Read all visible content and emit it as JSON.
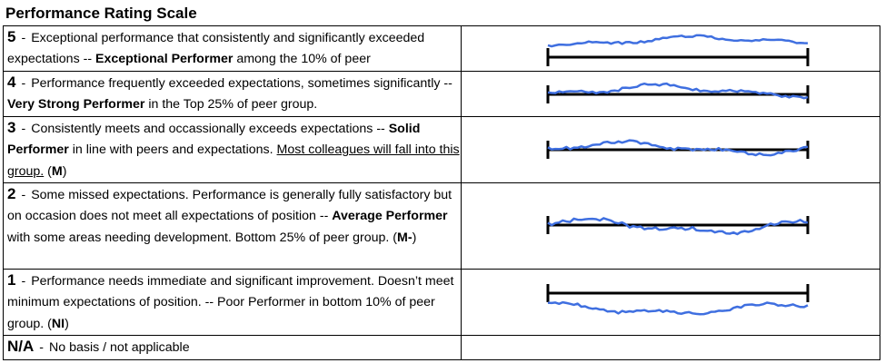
{
  "title": "Performance Rating Scale",
  "rows": [
    {
      "rating": "5",
      "dash": "-",
      "text1": "Exceptional performance that consistently and significantly exceeded expectations -- ",
      "bold1": "Exceptional Performer",
      "text2": " among the 10% of peer",
      "curve": "above",
      "line_color": "#000000",
      "curve_color": "#3f6fe0"
    },
    {
      "rating": "4",
      "dash": "-",
      "text1": "Performance frequently exceeded expectations, sometimes significantly -- ",
      "bold1": "Very Strong Performer",
      "text2": " in the Top 25% of peer group.",
      "curve": "slightly-above",
      "line_color": "#000000",
      "curve_color": "#3f6fe0"
    },
    {
      "rating": "3",
      "dash": "-",
      "text1": "Consistently meets and occassionally exceeds expectations -- ",
      "bold1": "Solid Performer",
      "text2": " in line with peers and expectations.  ",
      "underlined": "Most colleagues will fall into this group.",
      "text3": " (",
      "bold2": "M",
      "text4": ")",
      "curve": "on-line",
      "line_color": "#000000",
      "curve_color": "#3f6fe0"
    },
    {
      "rating": "2",
      "dash": "-",
      "text1": "Some missed expectations.  Performance is generally fully satisfactory but on occasion does not meet all expectations of position -- ",
      "bold1": "Average Performer",
      "text2": " with some areas needing development.  Bottom 25% of peer group. (",
      "bold2": "M-",
      "text3": ")",
      "curve": "on-line-below",
      "line_color": "#000000",
      "curve_color": "#3f6fe0"
    },
    {
      "rating": "1",
      "dash": "-",
      "text1": "Performance needs immediate and significant improvement.  Doesn’t meet minimum expectations of position. -- Poor Performer in bottom 10% of peer group. (",
      "bold1": "NI",
      "text2": ")",
      "curve": "below",
      "line_color": "#000000",
      "curve_color": "#3f6fe0"
    },
    {
      "rating": "N/A",
      "dash": "-",
      "text1": "No basis / not applicable"
    }
  ]
}
